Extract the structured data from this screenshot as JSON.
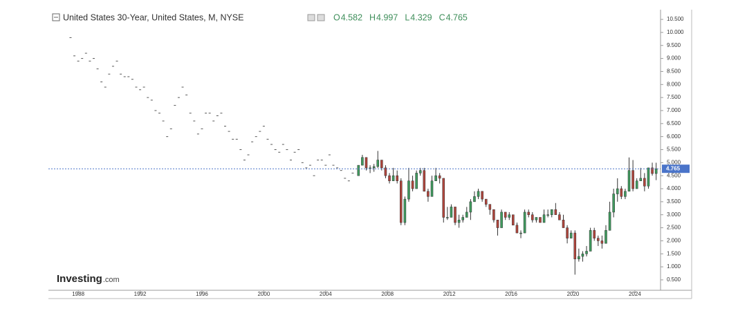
{
  "chart_data": {
    "type": "candlestick",
    "title": "United States 30-Year, United States, M, NYSE",
    "ohlc": [
      {
        "label": "O",
        "value": 4.582
      },
      {
        "label": "H",
        "value": 4.997
      },
      {
        "label": "L",
        "value": 4.329
      },
      {
        "label": "C",
        "value": 4.765
      }
    ],
    "logo": [
      "Investing",
      ".com"
    ],
    "xlim": [
      1986.07,
      2025.66
    ],
    "xticks": [
      1988,
      1992,
      1996,
      2000,
      2004,
      2008,
      2012,
      2016,
      2020,
      2024
    ],
    "ylim": [
      0.1,
      10.82
    ],
    "yticks": [
      {
        "value": 0.5,
        "label": "0.500"
      },
      {
        "value": 1,
        "label": "1.000"
      },
      {
        "value": 1.5,
        "label": "1.500"
      },
      {
        "value": 2,
        "label": "2.000"
      },
      {
        "value": 2.5,
        "label": "2.500"
      },
      {
        "value": 3,
        "label": "3.000"
      },
      {
        "value": 3.5,
        "label": "3.500"
      },
      {
        "value": 4,
        "label": "4.000"
      },
      {
        "value": 4.5,
        "label": "4.500"
      },
      {
        "value": 5,
        "label": "5.000"
      },
      {
        "value": 5.5,
        "label": "5.500"
      },
      {
        "value": 6,
        "label": "6.000"
      },
      {
        "value": 6.5,
        "label": "6.500"
      },
      {
        "value": 7,
        "label": "7.000"
      },
      {
        "value": 7.5,
        "label": "7.500"
      },
      {
        "value": 8,
        "label": "8.000"
      },
      {
        "value": 8.5,
        "label": "8.500"
      },
      {
        "value": 9,
        "label": "9.000"
      },
      {
        "value": 9.5,
        "label": "9.500"
      },
      {
        "value": 10,
        "label": "10.000"
      },
      {
        "value": 10.5,
        "label": "10.500"
      }
    ],
    "dash_color": "#555555",
    "up_color": "#3f9a5e",
    "down_color": "#b0453c",
    "price_line_color": "#4a74c9",
    "history": {
      "x": [
        1987.5,
        1987.75,
        1988,
        1988.25,
        1988.5,
        1988.75,
        1989,
        1989.25,
        1989.5,
        1989.75,
        1990,
        1990.25,
        1990.5,
        1990.75,
        1991,
        1991.25,
        1991.5,
        1991.75,
        1992,
        1992.25,
        1992.5,
        1992.75,
        1993,
        1993.25,
        1993.5,
        1993.75,
        1994,
        1994.25,
        1994.5,
        1994.75,
        1995,
        1995.25,
        1995.5,
        1995.75,
        1996,
        1996.25,
        1996.5,
        1996.75,
        1997,
        1997.25,
        1997.5,
        1997.75,
        1998,
        1998.25,
        1998.5,
        1998.75,
        1999,
        1999.25,
        1999.5,
        1999.75,
        2000,
        2000.25,
        2000.5,
        2000.75,
        2001,
        2001.25,
        2001.5,
        2001.75,
        2002,
        2002.25,
        2002.5,
        2002.75,
        2003,
        2003.25,
        2003.5,
        2003.75,
        2004,
        2004.25,
        2004.5,
        2004.75,
        2005,
        2005.25,
        2005.5,
        2005.75
      ],
      "values": [
        9.8,
        9.1,
        8.9,
        9.0,
        9.2,
        8.9,
        9.0,
        8.6,
        8.1,
        7.9,
        8.4,
        8.7,
        8.9,
        8.4,
        8.3,
        8.3,
        8.2,
        7.9,
        7.8,
        7.9,
        7.5,
        7.4,
        7.0,
        6.9,
        6.6,
        6.0,
        6.3,
        7.2,
        7.5,
        7.9,
        7.6,
        6.9,
        6.6,
        6.1,
        6.3,
        6.9,
        6.9,
        6.6,
        6.8,
        6.9,
        6.4,
        6.2,
        5.9,
        5.9,
        5.5,
        5.1,
        5.3,
        5.8,
        6.0,
        6.2,
        6.4,
        5.9,
        5.7,
        5.5,
        5.4,
        5.7,
        5.5,
        5.1,
        5.4,
        5.5,
        5.0,
        4.8,
        4.9,
        4.5,
        5.1,
        5.1,
        4.9,
        5.3,
        4.9,
        4.8,
        4.7,
        4.4,
        4.3,
        4.6
      ]
    },
    "candles": {
      "x": [
        2006,
        2006.25,
        2006.5,
        2006.75,
        2007,
        2007.25,
        2007.5,
        2007.75,
        2008,
        2008.25,
        2008.5,
        2008.75,
        2009,
        2009.25,
        2009.5,
        2009.75,
        2010,
        2010.25,
        2010.5,
        2010.75,
        2011,
        2011.25,
        2011.5,
        2011.75,
        2012,
        2012.25,
        2012.5,
        2012.75,
        2013,
        2013.25,
        2013.5,
        2013.75,
        2014,
        2014.25,
        2014.5,
        2014.75,
        2015,
        2015.25,
        2015.5,
        2015.75,
        2016,
        2016.25,
        2016.5,
        2016.75,
        2017,
        2017.25,
        2017.5,
        2017.75,
        2018,
        2018.25,
        2018.5,
        2018.75,
        2019,
        2019.25,
        2019.5,
        2019.75,
        2020,
        2020.25,
        2020.5,
        2020.75,
        2021,
        2021.25,
        2021.5,
        2021.75,
        2022,
        2022.25,
        2022.5,
        2022.75,
        2023,
        2023.25,
        2023.5,
        2023.75,
        2024,
        2024.25,
        2024.5,
        2024.75,
        2025,
        2025.25
      ],
      "open": [
        4.5,
        4.9,
        5.2,
        4.8,
        4.8,
        4.85,
        5.1,
        4.8,
        4.5,
        4.3,
        4.5,
        4.3,
        2.7,
        3.6,
        4.3,
        4.0,
        4.6,
        4.7,
        3.9,
        3.7,
        4.3,
        4.5,
        4.4,
        2.9,
        2.9,
        3.3,
        2.7,
        2.8,
        2.9,
        3.1,
        3.5,
        3.7,
        3.9,
        3.6,
        3.4,
        3.2,
        2.8,
        2.5,
        3.1,
        2.9,
        3.0,
        2.6,
        2.3,
        2.3,
        3.1,
        3.0,
        2.8,
        2.9,
        2.7,
        3.0,
        3.0,
        3.2,
        3.0,
        2.8,
        2.5,
        2.1,
        2.3,
        1.3,
        1.4,
        1.5,
        1.6,
        2.4,
        2.1,
        2.0,
        1.9,
        2.4,
        3.1,
        3.8,
        4.0,
        3.7,
        3.9,
        4.7,
        4.0,
        4.3,
        4.4,
        4.1,
        4.8,
        4.582
      ],
      "high": [
        4.9,
        5.3,
        5.2,
        4.9,
        4.95,
        5.45,
        5.1,
        4.9,
        4.6,
        4.8,
        4.7,
        4.4,
        3.7,
        4.8,
        4.5,
        4.7,
        4.8,
        4.8,
        4.0,
        4.5,
        4.8,
        4.6,
        4.4,
        3.3,
        3.4,
        3.3,
        3.0,
        3.0,
        3.3,
        3.6,
        3.9,
        4.0,
        3.9,
        3.6,
        3.4,
        3.2,
        2.8,
        3.2,
        3.1,
        3.1,
        3.0,
        2.7,
        2.4,
        3.2,
        3.2,
        3.1,
        2.9,
        2.9,
        3.2,
        3.2,
        3.2,
        3.45,
        3.1,
        3.0,
        2.6,
        2.4,
        2.4,
        1.7,
        1.6,
        1.8,
        2.5,
        2.5,
        2.2,
        2.2,
        2.6,
        3.5,
        4.0,
        4.4,
        4.1,
        4.0,
        5.2,
        5.1,
        4.4,
        4.8,
        4.6,
        4.8,
        5.0,
        4.997
      ],
      "low": [
        4.5,
        4.9,
        4.7,
        4.6,
        4.65,
        4.8,
        4.7,
        4.4,
        4.2,
        4.3,
        4.2,
        2.6,
        2.6,
        3.5,
        3.9,
        4.0,
        4.5,
        3.9,
        3.5,
        3.7,
        4.3,
        4.2,
        2.7,
        2.8,
        2.9,
        2.6,
        2.5,
        2.7,
        2.9,
        2.8,
        3.5,
        3.6,
        3.5,
        3.3,
        3.0,
        2.7,
        2.2,
        2.5,
        2.8,
        2.8,
        2.6,
        2.3,
        2.1,
        2.3,
        2.9,
        2.7,
        2.7,
        2.7,
        2.7,
        2.9,
        2.9,
        3.0,
        2.8,
        2.5,
        1.9,
        2.1,
        0.7,
        1.2,
        1.2,
        1.4,
        1.6,
        2.0,
        1.8,
        1.7,
        1.9,
        2.4,
        2.9,
        3.5,
        3.6,
        3.6,
        3.9,
        3.9,
        4.0,
        4.3,
        3.9,
        4.0,
        4.5,
        4.329
      ],
      "close": [
        4.9,
        5.2,
        4.8,
        4.8,
        4.85,
        5.1,
        4.8,
        4.5,
        4.3,
        4.5,
        4.3,
        2.7,
        3.6,
        4.3,
        4.0,
        4.6,
        4.7,
        3.9,
        3.7,
        4.3,
        4.5,
        4.4,
        2.9,
        2.9,
        3.3,
        2.7,
        2.8,
        2.9,
        3.1,
        3.5,
        3.7,
        3.9,
        3.6,
        3.4,
        3.2,
        2.8,
        2.5,
        3.1,
        2.9,
        3.0,
        2.6,
        2.3,
        2.3,
        3.1,
        3.0,
        2.8,
        2.9,
        2.7,
        3.0,
        3.0,
        3.2,
        3.0,
        2.8,
        2.5,
        2.1,
        2.3,
        1.3,
        1.4,
        1.5,
        1.6,
        2.4,
        2.1,
        2.0,
        1.9,
        2.4,
        3.1,
        3.8,
        4.0,
        3.7,
        3.9,
        4.7,
        4.0,
        4.3,
        4.4,
        4.1,
        4.8,
        4.582,
        4.765
      ]
    }
  }
}
